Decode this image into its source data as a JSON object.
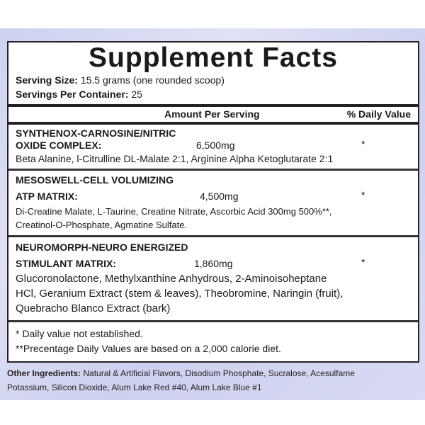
{
  "title": "Supplement Facts",
  "serving_size": {
    "label": "Serving Size:",
    "value": "15.5 grams (one rounded scoop)"
  },
  "servings_per_container": {
    "label": "Servings Per Container:",
    "value": "25"
  },
  "header": {
    "amount": "Amount Per Serving",
    "daily_value": "% Daily Value"
  },
  "sections": [
    {
      "name_line1": "SYNTHENOX-CARNOSINE/NITRIC",
      "name_line2": "OXIDE COMPLEX:",
      "amount": "6,500mg",
      "dv": "*",
      "ingredients": [
        "Beta Alanine, l-Citrulline DL-Malate 2:1, Arginine Alpha Ketoglutarate 2:1"
      ]
    },
    {
      "name_line1": "MESOSWELL-CELL VOLUMIZING",
      "name_line2": "ATP MATRIX:",
      "amount": "4,500mg",
      "dv": "*",
      "ingredients": [
        "Di-Creatine Malate, L-Taurine, Creatine Nitrate, Ascorbic Acid 300mg  500%**,",
        "Creatinol-O-Phosphate, Agmatine Sulfate."
      ]
    },
    {
      "name_line1": "NEUROMORPH-NEURO ENERGIZED",
      "name_line2": "STIMULANT MATRIX:",
      "amount": "1,860mg",
      "dv": "*",
      "ingredients": [
        "Glucoronolactone, Methylxanthine Anhydrous, 2-Aminoisoheptane",
        "HCl, Geranium Extract (stem & leaves), Theobromine, Naringin (fruit),",
        "Quebracho Blanco Extract (bark)"
      ]
    }
  ],
  "footnotes": [
    "* Daily value not established.",
    "**Precentage Daily Values are based on a 2,000 calorie diet."
  ],
  "other_ingredients": {
    "label": "Other Ingredients:",
    "line1": "Natural & Artificial Flavors, Disodium Phosphate, Sucralose, Acesulfame",
    "line2": "Potassium, Silicon Dioxide, Alum Lake Red #40, Alum Lake Blue #1"
  }
}
